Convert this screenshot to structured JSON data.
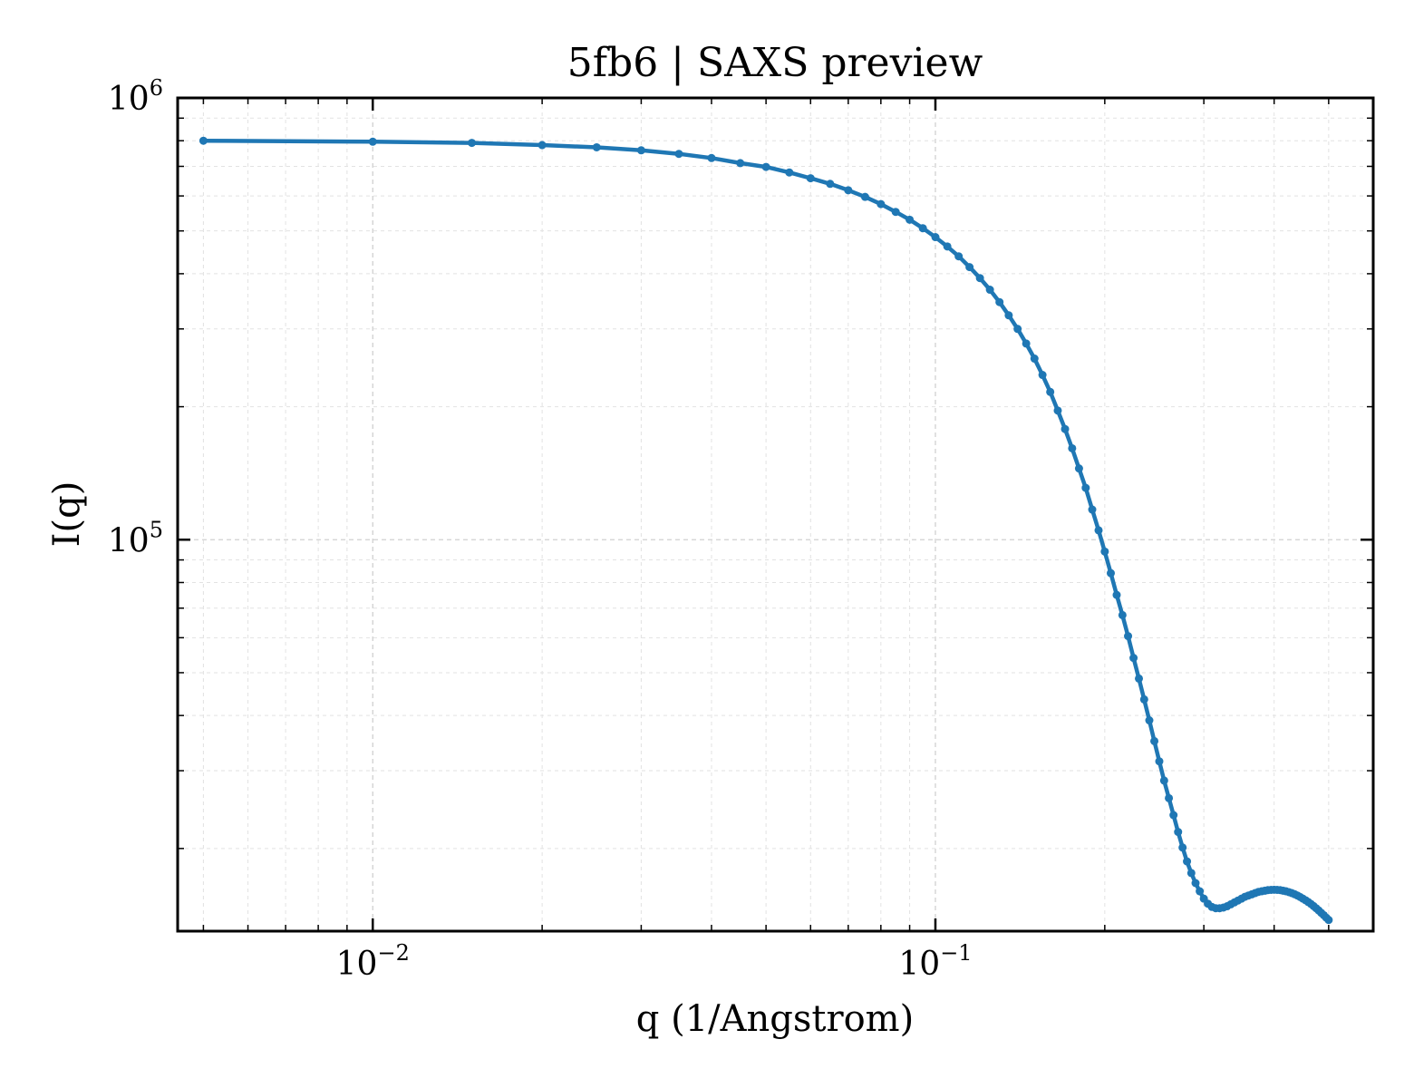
{
  "chart_data": {
    "type": "line",
    "title": "5fb6 | SAXS preview",
    "xlabel": "q (1/Angstrom)",
    "ylabel": "I(q)",
    "xscale": "log",
    "yscale": "log",
    "xlim": [
      0.0045,
      0.6
    ],
    "ylim": [
      13000,
      1000000
    ],
    "grid": true,
    "x_ticks": [
      {
        "value": 0.01,
        "base": "10",
        "exp": "−2"
      },
      {
        "value": 0.1,
        "base": "10",
        "exp": "−1"
      }
    ],
    "y_ticks": [
      {
        "value": 100000,
        "base": "10",
        "exp": "5"
      },
      {
        "value": 1000000,
        "base": "10",
        "exp": "6"
      }
    ],
    "series": [
      {
        "color": "#1f77b4",
        "marker": "circle",
        "x": [
          0.005,
          0.01,
          0.015,
          0.02,
          0.025,
          0.03,
          0.035,
          0.04,
          0.045,
          0.05,
          0.055,
          0.06,
          0.065,
          0.07,
          0.075,
          0.08,
          0.085,
          0.09,
          0.095,
          0.1,
          0.105,
          0.11,
          0.115,
          0.12,
          0.125,
          0.13,
          0.135,
          0.14,
          0.145,
          0.15,
          0.155,
          0.16,
          0.165,
          0.17,
          0.175,
          0.18,
          0.185,
          0.19,
          0.195,
          0.2,
          0.205,
          0.21,
          0.215,
          0.22,
          0.225,
          0.23,
          0.235,
          0.24,
          0.245,
          0.25,
          0.255,
          0.26,
          0.265,
          0.27,
          0.275,
          0.28,
          0.285,
          0.29,
          0.295,
          0.3,
          0.305,
          0.31,
          0.315,
          0.32,
          0.325,
          0.33,
          0.335,
          0.34,
          0.345,
          0.35,
          0.355,
          0.36,
          0.365,
          0.37,
          0.375,
          0.38,
          0.385,
          0.39,
          0.395,
          0.4,
          0.405,
          0.41,
          0.415,
          0.42,
          0.425,
          0.43,
          0.435,
          0.44,
          0.445,
          0.45,
          0.455,
          0.46,
          0.465,
          0.47,
          0.475,
          0.48,
          0.485,
          0.49,
          0.495,
          0.5
        ],
        "y": [
          800000,
          796000,
          791000,
          782000,
          773000,
          761000,
          747000,
          731000,
          712000,
          698000,
          678000,
          658000,
          639000,
          618000,
          597000,
          575000,
          552000,
          530000,
          507000,
          484000,
          461000,
          438000,
          414000,
          391000,
          368000,
          345000,
          322000,
          300000,
          278000,
          257000,
          236000,
          216000,
          196000,
          178000,
          161000,
          145000,
          131000,
          117000,
          105000,
          94000,
          84000,
          75000,
          67500,
          60500,
          54000,
          48500,
          43500,
          39000,
          35000,
          31500,
          28500,
          26000,
          23800,
          21800,
          20100,
          18700,
          17600,
          16700,
          16000,
          15400,
          15000,
          14750,
          14650,
          14650,
          14700,
          14800,
          14950,
          15100,
          15250,
          15400,
          15550,
          15650,
          15750,
          15850,
          15950,
          16000,
          16050,
          16100,
          16120,
          16130,
          16120,
          16100,
          16050,
          16000,
          15930,
          15850,
          15760,
          15650,
          15530,
          15400,
          15270,
          15130,
          14980,
          14820,
          14650,
          14480,
          14300,
          14130,
          13950,
          13780
        ]
      }
    ]
  }
}
